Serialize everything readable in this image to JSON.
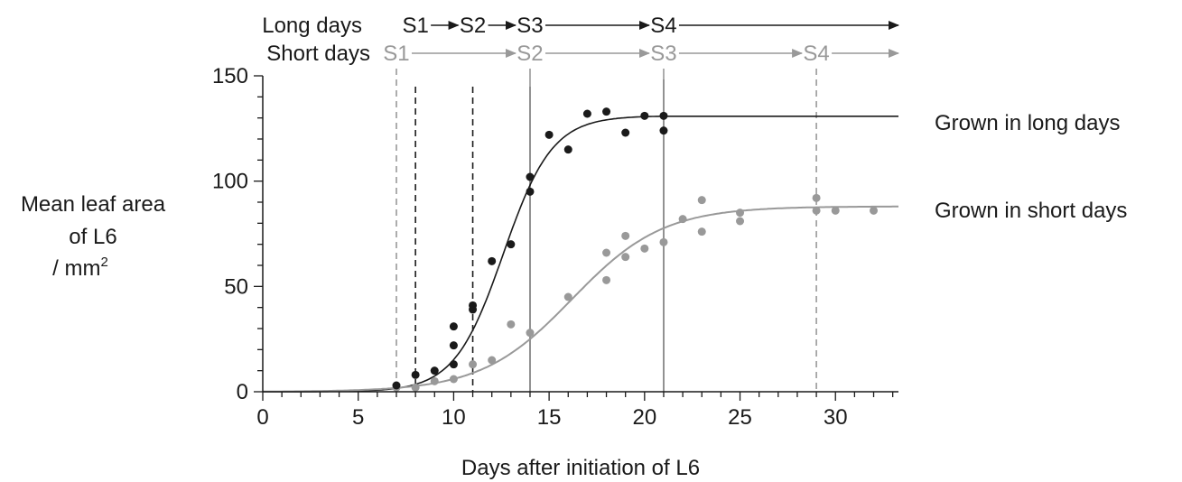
{
  "chart_data": {
    "type": "scatter",
    "xlabel": "Days after initiation of L6",
    "ylabel_lines": [
      "Mean leaf area",
      "of L6",
      "/ mm"
    ],
    "ylabel_superscript": "2",
    "xlim": [
      0,
      33.3
    ],
    "ylim": [
      0,
      150
    ],
    "xticks": [
      0,
      5,
      10,
      15,
      20,
      25,
      30
    ],
    "yticks": [
      0,
      50,
      100,
      150
    ],
    "grid": false,
    "series": [
      {
        "name": "Grown in long days",
        "color": "#1a1a1a",
        "points": [
          [
            7,
            3
          ],
          [
            8,
            8
          ],
          [
            9,
            10
          ],
          [
            10,
            31
          ],
          [
            10,
            22
          ],
          [
            10,
            13
          ],
          [
            11,
            41
          ],
          [
            11,
            39
          ],
          [
            12,
            62
          ],
          [
            13,
            70
          ],
          [
            14,
            102
          ],
          [
            14,
            95
          ],
          [
            15,
            122
          ],
          [
            16,
            115
          ],
          [
            17,
            132
          ],
          [
            18,
            133
          ],
          [
            19,
            123
          ],
          [
            20,
            131
          ],
          [
            21,
            131
          ],
          [
            21,
            124
          ]
        ],
        "curve": {
          "model": "logistic",
          "max": 131,
          "midpoint": 12.6,
          "rate": 0.78,
          "plateau_from": 21
        }
      },
      {
        "name": "Grown in short days",
        "color": "#999999",
        "points": [
          [
            7,
            2
          ],
          [
            8,
            2
          ],
          [
            9,
            5
          ],
          [
            10,
            6
          ],
          [
            11,
            13
          ],
          [
            12,
            15
          ],
          [
            13,
            32
          ],
          [
            14,
            28
          ],
          [
            16,
            45
          ],
          [
            18,
            66
          ],
          [
            18,
            53
          ],
          [
            19,
            74
          ],
          [
            19,
            64
          ],
          [
            20,
            68
          ],
          [
            21,
            71
          ],
          [
            22,
            82
          ],
          [
            23,
            91
          ],
          [
            23,
            76
          ],
          [
            25,
            85
          ],
          [
            25,
            81
          ],
          [
            29,
            92
          ],
          [
            29,
            86
          ],
          [
            30,
            86
          ],
          [
            32,
            86
          ]
        ],
        "curve": {
          "model": "logistic",
          "max": 88,
          "midpoint": 16.2,
          "rate": 0.42
        }
      }
    ],
    "stages": {
      "long_days": {
        "label": "Long days",
        "color": "#1a1a1a",
        "markers": [
          {
            "name": "S1",
            "day": 8
          },
          {
            "name": "S2",
            "day": 11
          },
          {
            "name": "S3",
            "day": 14
          },
          {
            "name": "S4",
            "day": 21
          }
        ]
      },
      "short_days": {
        "label": "Short days",
        "color": "#999999",
        "markers": [
          {
            "name": "S1",
            "day": 7
          },
          {
            "name": "S2",
            "day": 14
          },
          {
            "name": "S3",
            "day": 21
          },
          {
            "name": "S4",
            "day": 29
          }
        ]
      }
    }
  }
}
